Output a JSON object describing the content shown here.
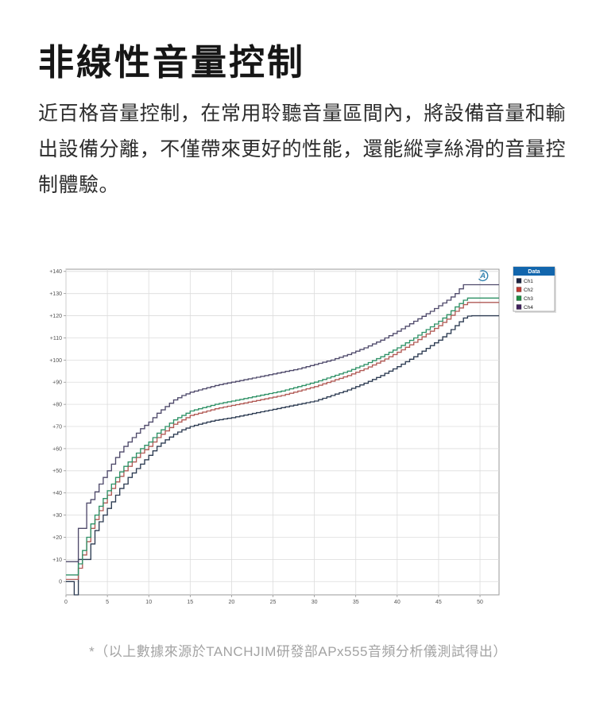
{
  "page": {
    "title": "非線性音量控制",
    "description": "近百格音量控制，在常用聆聽音量區間內，將設備音量和輸出設備分離，不僅帶來更好的性能，還能縱享絲滑的音量控制體驗。",
    "footnote": "*（以上數據來源於TANCHJIM研發部APx555音頻分析儀測試得出）"
  },
  "chart_data": {
    "type": "line",
    "line_style": "step",
    "title": "",
    "xlabel": "",
    "ylabel": "",
    "xlim": [
      0,
      52.3
    ],
    "ylim": [
      -6,
      141
    ],
    "grid": true,
    "grid_color": "#dcdcdc",
    "border_color": "#9a9a9a",
    "tick_label_color": "#555555",
    "x_ticks": [
      0,
      5,
      10,
      15,
      20,
      25,
      30,
      35,
      40,
      45,
      50
    ],
    "x_tick_labels": [
      "0",
      "5",
      "10",
      "15",
      "20",
      "25",
      "30",
      "35",
      "40",
      "45",
      "50"
    ],
    "y_ticks": [
      0,
      10,
      20,
      30,
      40,
      50,
      60,
      70,
      80,
      90,
      100,
      110,
      120,
      130,
      140
    ],
    "y_tick_labels": [
      "0",
      "+10",
      "+20",
      "+30",
      "+40",
      "+50",
      "+60",
      "+70",
      "+80",
      "+90",
      "+100",
      "+110",
      "+120",
      "+130",
      "+140"
    ],
    "legend": {
      "title": "Data",
      "position": "outside-right",
      "header_color": "#1266ad",
      "header_text_color": "#ffffff",
      "border_color": "#999999"
    },
    "watermark": "audio-precision-logo",
    "watermark_color": "#2e7fae",
    "series": [
      {
        "name": "Ch1",
        "color": "#2c3b52",
        "swatch": "#1b2442",
        "points": [
          [
            0,
            0
          ],
          [
            0.9,
            0
          ],
          [
            1.0,
            -6
          ],
          [
            1.35,
            -6
          ],
          [
            1.45,
            10
          ],
          [
            2.7,
            10
          ],
          [
            2.8,
            17
          ],
          [
            3.2,
            17
          ],
          [
            3.3,
            21
          ],
          [
            3.7,
            25
          ],
          [
            4,
            27
          ],
          [
            4.5,
            30
          ],
          [
            5,
            33
          ],
          [
            5.5,
            36
          ],
          [
            6,
            39
          ],
          [
            6.5,
            42
          ],
          [
            7,
            44
          ],
          [
            7.5,
            47
          ],
          [
            8,
            49
          ],
          [
            8.5,
            51
          ],
          [
            9,
            53
          ],
          [
            9.5,
            55
          ],
          [
            10,
            57
          ],
          [
            11,
            61
          ],
          [
            12,
            64
          ],
          [
            13,
            66.5
          ],
          [
            14,
            68.5
          ],
          [
            15,
            70
          ],
          [
            16,
            71
          ],
          [
            17,
            72
          ],
          [
            18,
            72.8
          ],
          [
            19,
            73.4
          ],
          [
            20,
            74
          ],
          [
            22,
            75.5
          ],
          [
            24,
            77
          ],
          [
            26,
            78.5
          ],
          [
            28,
            80
          ],
          [
            30,
            81.5
          ],
          [
            32,
            84
          ],
          [
            34,
            86.5
          ],
          [
            36,
            89.5
          ],
          [
            38,
            93
          ],
          [
            40,
            97
          ],
          [
            42,
            101.5
          ],
          [
            44,
            106.5
          ],
          [
            45,
            109
          ],
          [
            46,
            112
          ],
          [
            47,
            115.5
          ],
          [
            48,
            119
          ],
          [
            48.6,
            120
          ],
          [
            52.3,
            120
          ]
        ]
      },
      {
        "name": "Ch2",
        "color": "#b15a55",
        "swatch": "#c23a32",
        "points": [
          [
            0,
            1
          ],
          [
            1.3,
            1
          ],
          [
            1.5,
            6
          ],
          [
            2,
            12
          ],
          [
            2.5,
            18
          ],
          [
            3,
            24
          ],
          [
            3.5,
            28
          ],
          [
            4,
            32
          ],
          [
            4.5,
            35.5
          ],
          [
            5,
            39
          ],
          [
            5.5,
            42
          ],
          [
            6,
            45
          ],
          [
            6.5,
            47.5
          ],
          [
            7,
            50
          ],
          [
            7.5,
            52
          ],
          [
            8,
            54
          ],
          [
            8.5,
            56
          ],
          [
            9,
            58
          ],
          [
            9.5,
            59.5
          ],
          [
            10,
            61
          ],
          [
            11,
            65
          ],
          [
            12,
            68
          ],
          [
            13,
            71
          ],
          [
            14,
            73
          ],
          [
            15,
            75
          ],
          [
            16,
            76
          ],
          [
            17,
            77
          ],
          [
            18,
            78
          ],
          [
            19,
            78.8
          ],
          [
            20,
            79.5
          ],
          [
            22,
            81
          ],
          [
            24,
            82.5
          ],
          [
            26,
            84
          ],
          [
            28,
            86
          ],
          [
            30,
            88
          ],
          [
            32,
            90.5
          ],
          [
            34,
            93
          ],
          [
            36,
            96
          ],
          [
            38,
            99.5
          ],
          [
            40,
            103.5
          ],
          [
            42,
            108
          ],
          [
            44,
            113
          ],
          [
            45,
            115.5
          ],
          [
            46,
            118.5
          ],
          [
            47,
            122
          ],
          [
            48,
            125
          ],
          [
            48.5,
            126
          ],
          [
            52.3,
            126
          ]
        ]
      },
      {
        "name": "Ch3",
        "color": "#2e9166",
        "swatch": "#1e8f45",
        "points": [
          [
            0,
            3
          ],
          [
            1.3,
            3
          ],
          [
            1.5,
            8
          ],
          [
            2,
            14
          ],
          [
            2.5,
            20
          ],
          [
            3,
            26
          ],
          [
            3.5,
            30
          ],
          [
            4,
            34
          ],
          [
            4.5,
            37.5
          ],
          [
            5,
            41
          ],
          [
            5.5,
            44
          ],
          [
            6,
            47
          ],
          [
            6.5,
            49.5
          ],
          [
            7,
            52
          ],
          [
            7.5,
            54
          ],
          [
            8,
            56
          ],
          [
            8.5,
            58
          ],
          [
            9,
            60
          ],
          [
            9.5,
            61.5
          ],
          [
            10,
            63
          ],
          [
            11,
            67
          ],
          [
            12,
            70
          ],
          [
            13,
            73
          ],
          [
            14,
            75
          ],
          [
            15,
            77
          ],
          [
            16,
            78
          ],
          [
            17,
            79
          ],
          [
            18,
            80
          ],
          [
            19,
            80.8
          ],
          [
            20,
            81.5
          ],
          [
            22,
            83
          ],
          [
            24,
            84.5
          ],
          [
            26,
            86
          ],
          [
            28,
            88
          ],
          [
            30,
            90
          ],
          [
            32,
            92.5
          ],
          [
            34,
            95
          ],
          [
            36,
            98
          ],
          [
            38,
            101.5
          ],
          [
            40,
            105.5
          ],
          [
            42,
            110
          ],
          [
            44,
            115
          ],
          [
            45,
            117.5
          ],
          [
            46,
            120.5
          ],
          [
            47,
            124
          ],
          [
            48,
            127
          ],
          [
            48.5,
            128
          ],
          [
            52.3,
            128
          ]
        ]
      },
      {
        "name": "Ch4",
        "color": "#4f4a6b",
        "swatch": "#41215e",
        "points": [
          [
            0,
            9
          ],
          [
            1.35,
            9
          ],
          [
            1.45,
            24
          ],
          [
            2.25,
            24
          ],
          [
            2.35,
            35
          ],
          [
            3,
            37
          ],
          [
            3.5,
            40.5
          ],
          [
            4,
            44
          ],
          [
            4.5,
            47
          ],
          [
            5,
            50
          ],
          [
            5.5,
            53
          ],
          [
            6,
            56
          ],
          [
            6.5,
            58.5
          ],
          [
            7,
            61
          ],
          [
            7.5,
            63
          ],
          [
            8,
            65
          ],
          [
            8.5,
            67
          ],
          [
            9,
            69
          ],
          [
            9.5,
            70.5
          ],
          [
            10,
            72
          ],
          [
            11,
            76
          ],
          [
            12,
            79
          ],
          [
            13,
            82
          ],
          [
            14,
            84
          ],
          [
            15,
            85.5
          ],
          [
            16,
            86.5
          ],
          [
            17,
            87.5
          ],
          [
            18,
            88.5
          ],
          [
            19,
            89.3
          ],
          [
            20,
            90
          ],
          [
            22,
            91.5
          ],
          [
            24,
            93
          ],
          [
            26,
            94.5
          ],
          [
            28,
            96
          ],
          [
            30,
            98
          ],
          [
            32,
            100
          ],
          [
            34,
            102.5
          ],
          [
            36,
            105.5
          ],
          [
            38,
            109
          ],
          [
            40,
            113
          ],
          [
            42,
            117.5
          ],
          [
            44,
            122
          ],
          [
            45,
            124.5
          ],
          [
            46,
            127
          ],
          [
            47,
            130
          ],
          [
            47.7,
            133
          ],
          [
            48,
            134
          ],
          [
            52.3,
            134
          ]
        ]
      }
    ]
  }
}
